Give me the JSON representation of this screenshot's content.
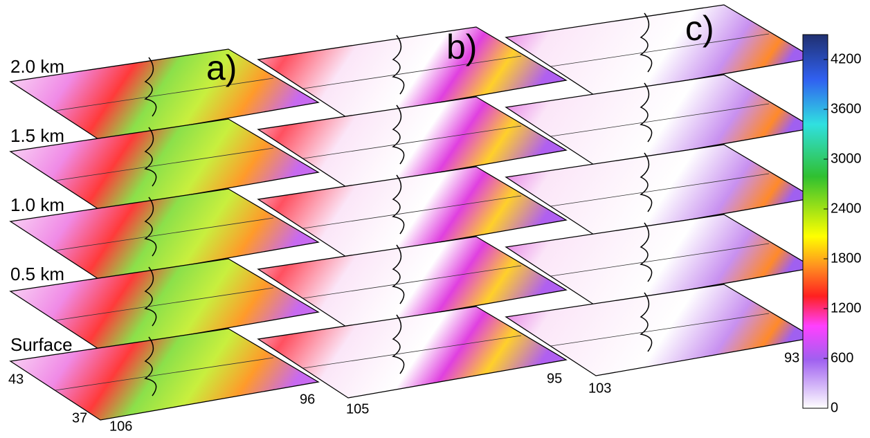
{
  "panels": [
    "a)",
    "b)",
    "c)"
  ],
  "levels": [
    "2.0 km",
    "1.5 km",
    "1.0 km",
    "0.5 km",
    "Surface"
  ],
  "corner_labels": {
    "a": [
      "43",
      "37",
      "106",
      "96"
    ],
    "b": [
      "105",
      "95"
    ],
    "c": [
      "103",
      "93"
    ]
  },
  "colorbar": {
    "lim": [
      0,
      4500
    ],
    "ticks": [
      0,
      600,
      1200,
      1800,
      2400,
      3000,
      3600,
      4200
    ]
  }
}
